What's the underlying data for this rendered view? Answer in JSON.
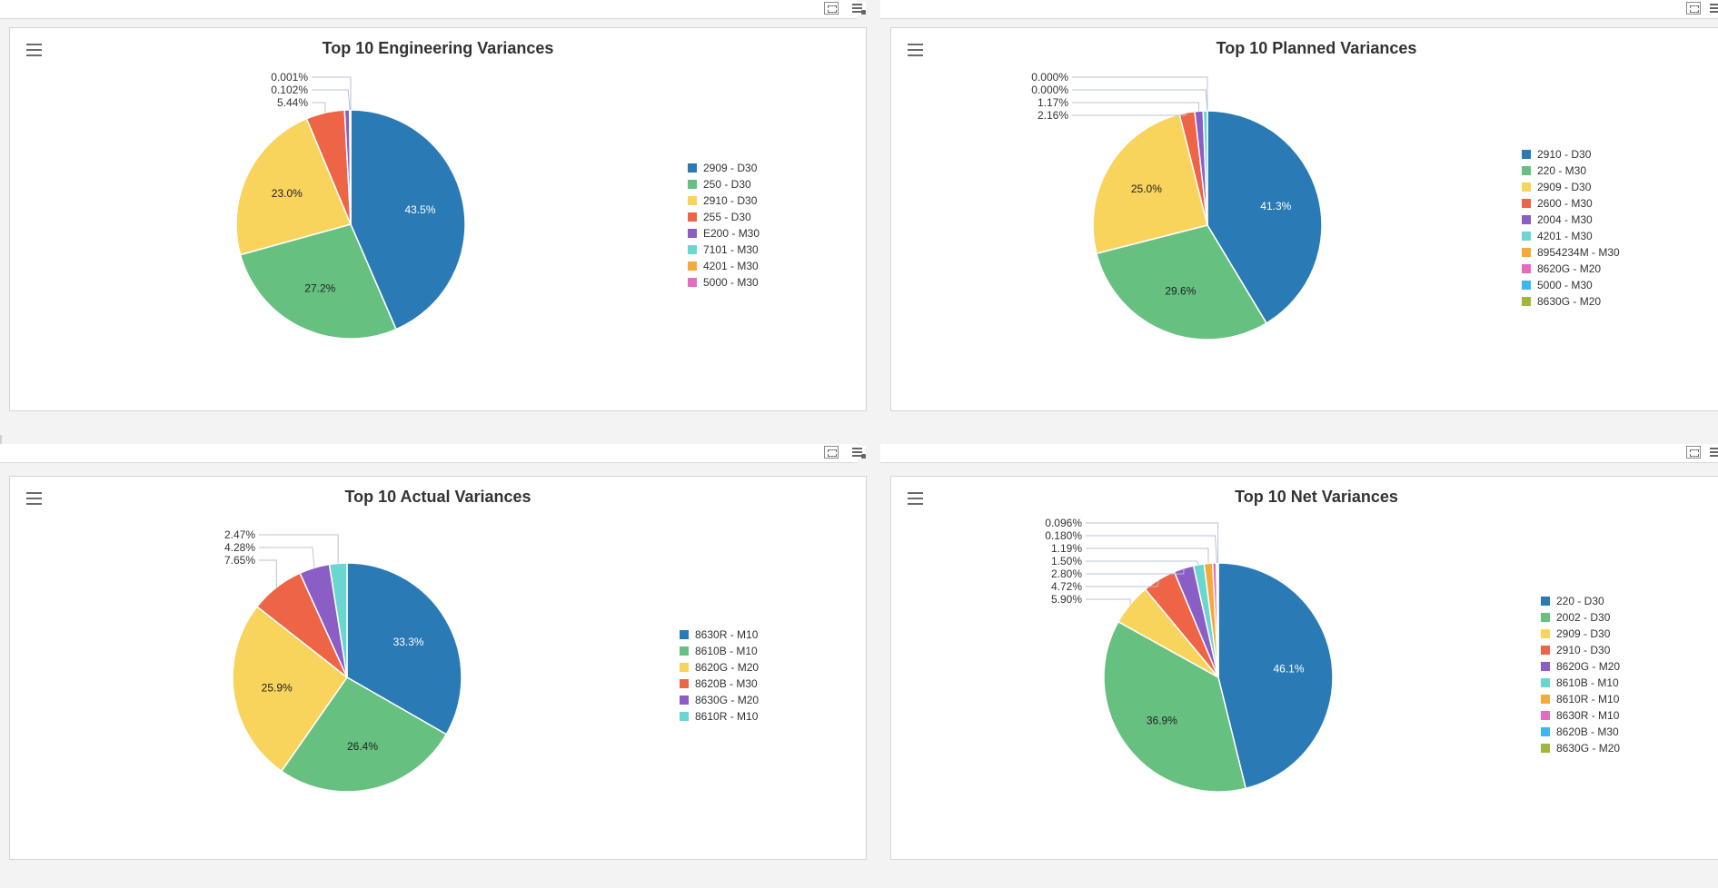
{
  "palette": [
    "#2a7ab5",
    "#66c080",
    "#f8d45c",
    "#ed6546",
    "#8a5ec4",
    "#6ad6cf",
    "#f6a93b",
    "#e46bbd",
    "#3bb8ef",
    "#a1b63c"
  ],
  "chart_data": [
    {
      "type": "pie",
      "title": "Top 10 Engineering Variances",
      "categories": [
        "2909 - D30",
        "250 - D30",
        "2910 - D30",
        "255 - D30",
        "E200 - M30",
        "7101 - M30",
        "4201 - M30",
        "5000 - M30"
      ],
      "values": [
        43.5,
        27.2,
        23.0,
        5.44,
        0.7,
        0.102,
        0.05,
        0.001
      ],
      "labels": [
        "43.5%",
        "27.2%",
        "23.0%",
        "5.44%",
        "",
        "0.102%",
        "",
        "0.001%"
      ],
      "legend": "right"
    },
    {
      "type": "pie",
      "title": "Top 10 Planned Variances",
      "categories": [
        "2910 - D30",
        "220 - M30",
        "2909 - D30",
        "2600 - M30",
        "2004 - M30",
        "4201 - M30",
        "8954234M - M30",
        "8620G - M20",
        "5000 - M30",
        "8630G - M20"
      ],
      "values": [
        41.3,
        29.6,
        25.0,
        2.16,
        1.17,
        0.6,
        0.0,
        0.0,
        0.0,
        0.0
      ],
      "labels": [
        "41.3%",
        "29.6%",
        "25.0%",
        "2.16%",
        "1.17%",
        "",
        "0.000%",
        "0.000%",
        "",
        ""
      ],
      "legend": "right"
    },
    {
      "type": "pie",
      "title": "Top 10 Actual Variances",
      "categories": [
        "8630R - M10",
        "8610B - M10",
        "8620G - M20",
        "8620B - M30",
        "8630G - M20",
        "8610R - M10"
      ],
      "values": [
        33.3,
        26.4,
        25.9,
        7.65,
        4.28,
        2.47
      ],
      "labels": [
        "33.3%",
        "26.4%",
        "25.9%",
        "7.65%",
        "4.28%",
        "2.47%"
      ],
      "legend": "right"
    },
    {
      "type": "pie",
      "title": "Top 10 Net Variances",
      "categories": [
        "220 - D30",
        "2002 - D30",
        "2909 - D30",
        "2910 - D30",
        "8620G - M20",
        "8610B - M10",
        "8610R - M10",
        "8630R - M10",
        "8620B - M30",
        "8630G - M20"
      ],
      "values": [
        46.1,
        36.9,
        5.9,
        4.72,
        2.8,
        1.5,
        1.19,
        0.52,
        0.18,
        0.096
      ],
      "labels": [
        "46.1%",
        "36.9%",
        "5.90%",
        "4.72%",
        "2.80%",
        "1.50%",
        "1.19%",
        "",
        "0.180%",
        "0.096%"
      ],
      "legend": "right"
    }
  ]
}
